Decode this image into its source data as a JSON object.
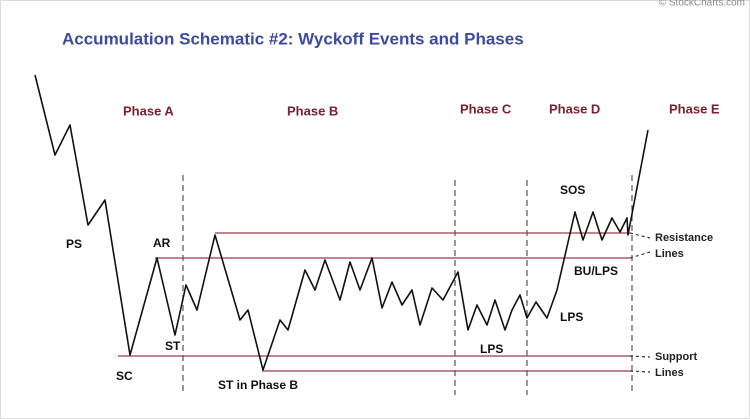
{
  "header": {
    "credit": "© StockCharts.com",
    "title": "Accumulation Schematic #2: Wyckoff Events and Phases"
  },
  "phases": [
    "Phase A",
    "Phase B",
    "Phase C",
    "Phase D",
    "Phase E"
  ],
  "events": [
    "PS",
    "SC",
    "AR",
    "ST",
    "ST in Phase B",
    "LPS",
    "SOS",
    "BU/LPS",
    "LPS"
  ],
  "lines": {
    "resistance": [
      "Resistance",
      "Lines"
    ],
    "support": [
      "Support",
      "Lines"
    ]
  }
}
